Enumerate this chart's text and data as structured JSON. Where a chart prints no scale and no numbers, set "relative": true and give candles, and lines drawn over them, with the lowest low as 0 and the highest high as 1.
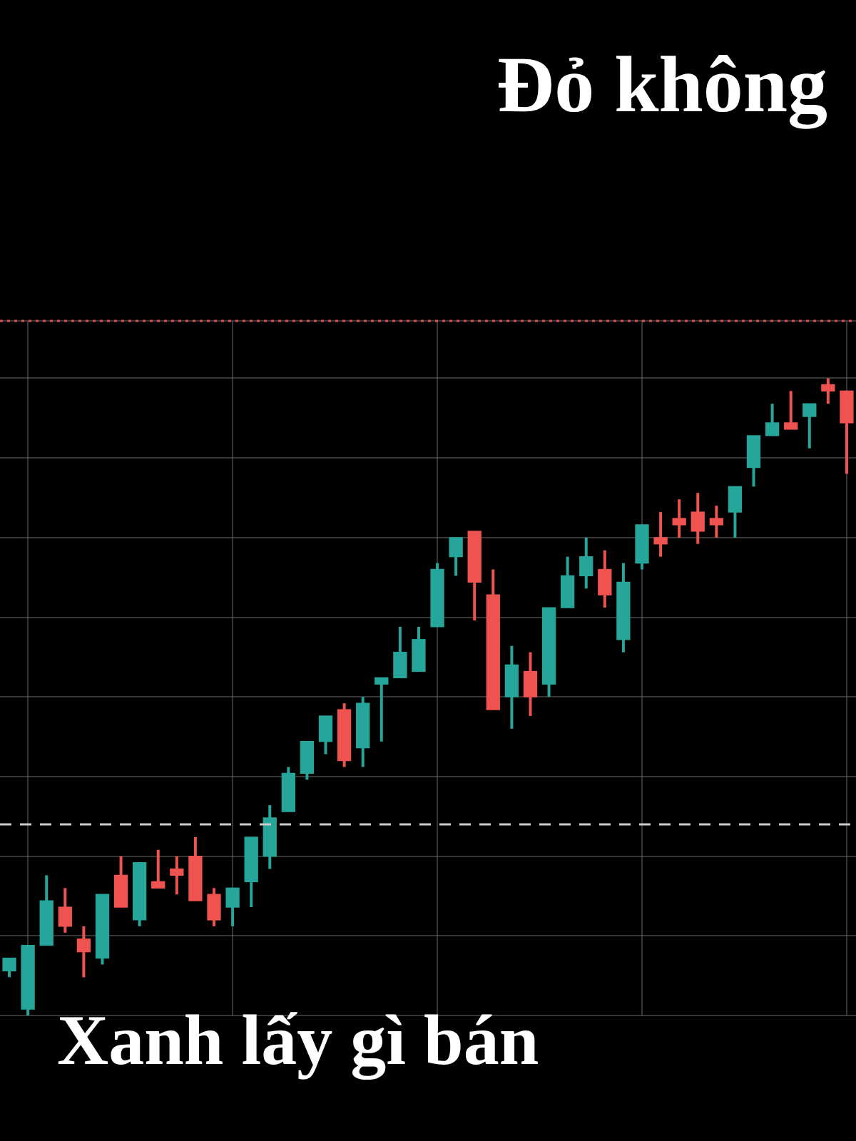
{
  "chart_data": {
    "type": "candlestick",
    "title": "Đỏ không",
    "annotations": [
      "Xanh lấy gì bán"
    ],
    "relative": true,
    "grid": true,
    "categories": [
      null,
      null,
      null,
      null,
      null,
      null,
      null,
      null,
      null,
      null,
      null,
      null,
      null,
      null,
      null,
      null,
      null,
      null,
      null,
      null,
      null,
      null,
      null,
      null,
      null,
      null,
      null,
      null,
      null,
      null,
      null,
      null,
      null,
      null,
      null,
      null,
      null,
      null,
      null,
      null,
      null,
      null,
      null,
      null,
      null,
      null
    ],
    "ohlc": [
      [
        0.07,
        0.09,
        0.06,
        0.09
      ],
      [
        0.01,
        0.11,
        0,
        0.11
      ],
      [
        0.11,
        0.22,
        0.11,
        0.18
      ],
      [
        0.17,
        0.2,
        0.13,
        0.14
      ],
      [
        0.12,
        0.14,
        0.06,
        0.1
      ],
      [
        0.09,
        0.19,
        0.08,
        0.19
      ],
      [
        0.22,
        0.25,
        0.17,
        0.17
      ],
      [
        0.15,
        0.24,
        0.14,
        0.24
      ],
      [
        0.21,
        0.26,
        0.2,
        0.2
      ],
      [
        0.23,
        0.25,
        0.19,
        0.22
      ],
      [
        0.25,
        0.28,
        0.18,
        0.18
      ],
      [
        0.19,
        0.2,
        0.14,
        0.15
      ],
      [
        0.17,
        0.2,
        0.14,
        0.2
      ],
      [
        0.21,
        0.28,
        0.17,
        0.28
      ],
      [
        0.25,
        0.33,
        0.23,
        0.31
      ],
      [
        0.32,
        0.39,
        0.32,
        0.38
      ],
      [
        0.38,
        0.43,
        0.37,
        0.43
      ],
      [
        0.43,
        0.47,
        0.41,
        0.47
      ],
      [
        0.48,
        0.49,
        0.39,
        0.4
      ],
      [
        0.42,
        0.5,
        0.39,
        0.49
      ],
      [
        0.52,
        0.53,
        0.43,
        0.53
      ],
      [
        0.53,
        0.61,
        0.53,
        0.57
      ],
      [
        0.54,
        0.61,
        0.54,
        0.59
      ],
      [
        0.61,
        0.71,
        0.61,
        0.7
      ],
      [
        0.72,
        0.75,
        0.69,
        0.75
      ],
      [
        0.76,
        0.76,
        0.62,
        0.68
      ],
      [
        0.66,
        0.7,
        0.48,
        0.48
      ],
      [
        0.5,
        0.58,
        0.45,
        0.55
      ],
      [
        0.54,
        0.57,
        0.47,
        0.5
      ],
      [
        0.52,
        0.64,
        0.5,
        0.64
      ],
      [
        0.64,
        0.72,
        0.64,
        0.69
      ],
      [
        0.69,
        0.75,
        0.67,
        0.72
      ],
      [
        0.7,
        0.73,
        0.64,
        0.66
      ],
      [
        0.59,
        0.71,
        0.57,
        0.68
      ],
      [
        0.71,
        0.77,
        0.7,
        0.77
      ],
      [
        0.75,
        0.79,
        0.72,
        0.74
      ],
      [
        0.78,
        0.81,
        0.75,
        0.77
      ],
      [
        0.79,
        0.82,
        0.74,
        0.76
      ],
      [
        0.78,
        0.8,
        0.75,
        0.77
      ],
      [
        0.79,
        0.83,
        0.75,
        0.83
      ],
      [
        0.86,
        0.91,
        0.83,
        0.91
      ],
      [
        0.91,
        0.96,
        0.91,
        0.93
      ],
      [
        0.93,
        0.98,
        0.92,
        0.92
      ],
      [
        0.94,
        0.96,
        0.89,
        0.96
      ],
      [
        0.99,
        1,
        0.96,
        0.98
      ],
      [
        0.98,
        0.98,
        0.85,
        0.93
      ]
    ],
    "colors": [
      "#26a69a",
      "#26a69a",
      "#26a69a",
      "#ef5350",
      "#ef5350",
      "#26a69a",
      "#ef5350",
      "#26a69a",
      "#ef5350",
      "#ef5350",
      "#ef5350",
      "#ef5350",
      "#26a69a",
      "#26a69a",
      "#26a69a",
      "#26a69a",
      "#26a69a",
      "#26a69a",
      "#ef5350",
      "#26a69a",
      "#26a69a",
      "#26a69a",
      "#26a69a",
      "#26a69a",
      "#26a69a",
      "#ef5350",
      "#ef5350",
      "#26a69a",
      "#ef5350",
      "#26a69a",
      "#26a69a",
      "#26a69a",
      "#ef5350",
      "#26a69a",
      "#26a69a",
      "#ef5350",
      "#ef5350",
      "#ef5350",
      "#ef5350",
      "#26a69a",
      "#26a69a",
      "#26a69a",
      "#ef5350",
      "#26a69a",
      "#ef5350",
      "#ef5350"
    ],
    "ref_lines": [
      {
        "axis": "y",
        "value": 1.09,
        "color": "#e05050",
        "line_style": "dotted"
      },
      {
        "axis": "y",
        "value": 0.3,
        "color": "#cccccc",
        "line_style": "dashed"
      }
    ]
  }
}
